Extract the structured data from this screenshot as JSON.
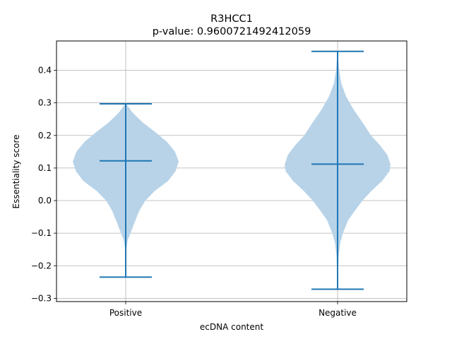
{
  "chart_data": {
    "type": "violin",
    "title": "R3HCC1",
    "subtitle": "p-value: 0.9600721492412059",
    "xlabel": "ecDNA content",
    "ylabel": "Essentiality score",
    "categories": [
      "Positive",
      "Negative"
    ],
    "ylim": [
      -0.31,
      0.49
    ],
    "yticks": [
      -0.3,
      -0.2,
      -0.1,
      0.0,
      0.1,
      0.2,
      0.3,
      0.4
    ],
    "ytick_labels": [
      "−0.3",
      "−0.2",
      "−0.1",
      "0.0",
      "0.1",
      "0.2",
      "0.3",
      "0.4"
    ],
    "grid": true,
    "violin_color": "#b8d3e8",
    "line_color": "#1f77b4",
    "violins": [
      {
        "name": "Positive",
        "min": -0.235,
        "max": 0.297,
        "mean": 0.122,
        "profile": [
          [
            -0.235,
            0.002
          ],
          [
            -0.2,
            0.004
          ],
          [
            -0.15,
            0.01
          ],
          [
            -0.12,
            0.04
          ],
          [
            -0.1,
            0.09
          ],
          [
            -0.07,
            0.16
          ],
          [
            -0.03,
            0.26
          ],
          [
            0.0,
            0.37
          ],
          [
            0.03,
            0.55
          ],
          [
            0.06,
            0.8
          ],
          [
            0.09,
            0.94
          ],
          [
            0.12,
            1.0
          ],
          [
            0.15,
            0.93
          ],
          [
            0.18,
            0.78
          ],
          [
            0.21,
            0.56
          ],
          [
            0.24,
            0.32
          ],
          [
            0.27,
            0.13
          ],
          [
            0.297,
            0.01
          ]
        ]
      },
      {
        "name": "Negative",
        "min": -0.272,
        "max": 0.458,
        "mean": 0.112,
        "profile": [
          [
            -0.272,
            0.006
          ],
          [
            -0.22,
            0.01
          ],
          [
            -0.17,
            0.02
          ],
          [
            -0.13,
            0.05
          ],
          [
            -0.1,
            0.1
          ],
          [
            -0.06,
            0.2
          ],
          [
            -0.03,
            0.33
          ],
          [
            0.0,
            0.47
          ],
          [
            0.03,
            0.64
          ],
          [
            0.06,
            0.84
          ],
          [
            0.09,
            0.98
          ],
          [
            0.11,
            1.0
          ],
          [
            0.14,
            0.94
          ],
          [
            0.17,
            0.8
          ],
          [
            0.2,
            0.63
          ],
          [
            0.24,
            0.47
          ],
          [
            0.28,
            0.3
          ],
          [
            0.32,
            0.16
          ],
          [
            0.36,
            0.07
          ],
          [
            0.4,
            0.03
          ],
          [
            0.43,
            0.015
          ],
          [
            0.458,
            0.008
          ]
        ]
      }
    ]
  }
}
